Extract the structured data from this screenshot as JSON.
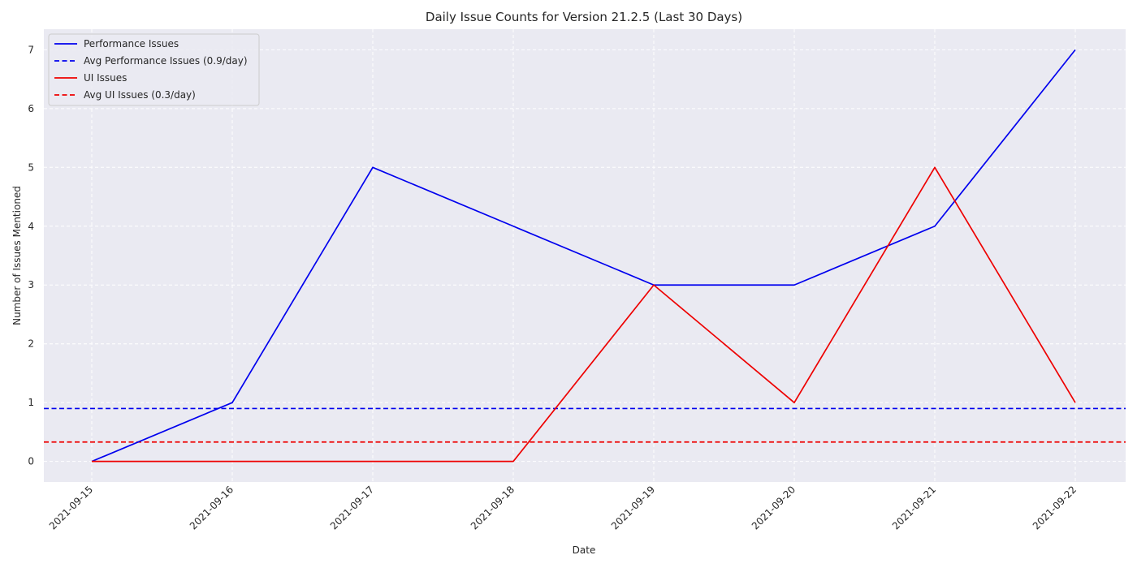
{
  "chart_data": {
    "type": "line",
    "title": "Daily Issue Counts for Version 21.2.5 (Last 30 Days)",
    "xlabel": "Date",
    "ylabel": "Number of Issues Mentioned",
    "x": [
      "2021-09-15",
      "2021-09-16",
      "2021-09-17",
      "2021-09-18",
      "2021-09-19",
      "2021-09-20",
      "2021-09-21",
      "2021-09-22"
    ],
    "ylim": [
      -0.35,
      7.35
    ],
    "yticks": [
      0,
      1,
      2,
      3,
      4,
      5,
      6,
      7
    ],
    "grid": true,
    "legend_position": "top-left",
    "series": [
      {
        "name": "Performance Issues",
        "values": [
          0,
          1,
          5,
          4,
          3,
          3,
          4,
          7
        ],
        "color": "#0000ee"
      },
      {
        "name": "UI Issues",
        "values": [
          0,
          0,
          0,
          0,
          3,
          1,
          5,
          1
        ],
        "color": "#ee0000"
      }
    ],
    "reference_lines": [
      {
        "name": "Avg Performance Issues (0.9/day)",
        "value": 0.9,
        "color": "#0000ee",
        "style": "dashed"
      },
      {
        "name": "Avg UI Issues (0.3/day)",
        "value": 0.33,
        "color": "#ee0000",
        "style": "dashed"
      }
    ],
    "legend_order": [
      "Performance Issues",
      "Avg Performance Issues (0.9/day)",
      "UI Issues",
      "Avg UI Issues (0.3/day)"
    ]
  }
}
